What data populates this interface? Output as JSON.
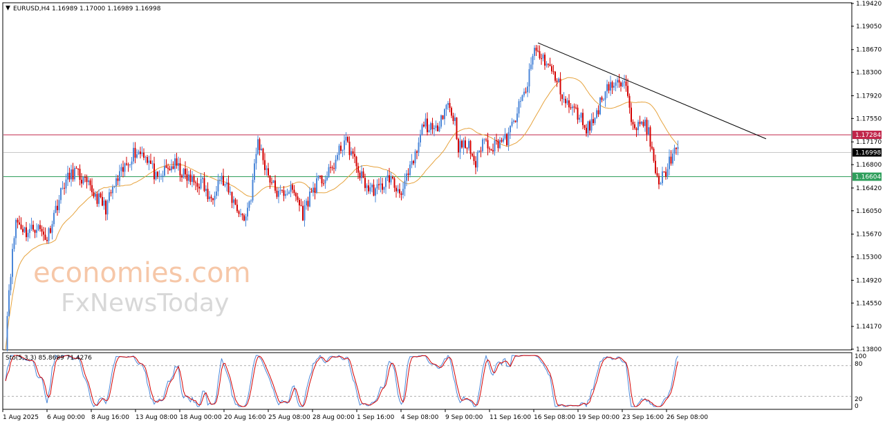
{
  "header": {
    "symbol_line": "EURUSD,H4  1.16989 1.17000 1.16989 1.16998"
  },
  "indicator": {
    "label": "Sto(5,3,3) 85.8689 71.4276",
    "levels": [
      "100",
      "80",
      "20",
      "0"
    ],
    "main_color": "#4a86d8",
    "signal_color": "#d40000"
  },
  "watermark": {
    "line1": "economies.com",
    "line2": "FxNewsToday"
  },
  "colors": {
    "bull": "#4a86d8",
    "bear": "#d40000",
    "ma": "#e6a23c",
    "trendline": "#000000",
    "resistance": "#c0264a",
    "support": "#2e9e5b"
  },
  "chart_data": {
    "type": "candlestick",
    "symbol": "EURUSD",
    "timeframe": "H4",
    "ylim": [
      1.138,
      1.1942
    ],
    "y_ticks": [
      "1.19420",
      "1.19050",
      "1.18670",
      "1.18300",
      "1.17920",
      "1.17550",
      "1.17170",
      "1.16800",
      "1.16420",
      "1.16050",
      "1.15670",
      "1.15300",
      "1.14920",
      "1.14550",
      "1.14170",
      "1.13800"
    ],
    "x_ticks": [
      "1 Aug 2025",
      "6 Aug 00:00",
      "8 Aug 16:00",
      "13 Aug 08:00",
      "18 Aug 00:00",
      "20 Aug 16:00",
      "25 Aug 08:00",
      "28 Aug 00:00",
      "1 Sep 16:00",
      "4 Sep 08:00",
      "9 Sep 00:00",
      "11 Sep 16:00",
      "16 Sep 08:00",
      "19 Sep 00:00",
      "23 Sep 16:00",
      "26 Sep 08:00"
    ],
    "price_path": [
      [
        0,
        1.139
      ],
      [
        2,
        1.148
      ],
      [
        6,
        1.159
      ],
      [
        12,
        1.157
      ],
      [
        18,
        1.158
      ],
      [
        24,
        1.156
      ],
      [
        28,
        1.16
      ],
      [
        34,
        1.165
      ],
      [
        40,
        1.167
      ],
      [
        46,
        1.165
      ],
      [
        52,
        1.163
      ],
      [
        58,
        1.161
      ],
      [
        62,
        1.164
      ],
      [
        68,
        1.167
      ],
      [
        74,
        1.17
      ],
      [
        80,
        1.17
      ],
      [
        84,
        1.168
      ],
      [
        88,
        1.165
      ],
      [
        92,
        1.167
      ],
      [
        98,
        1.168
      ],
      [
        104,
        1.166
      ],
      [
        110,
        1.165
      ],
      [
        114,
        1.165
      ],
      [
        118,
        1.162
      ],
      [
        124,
        1.166
      ],
      [
        128,
        1.164
      ],
      [
        134,
        1.161
      ],
      [
        138,
        1.159
      ],
      [
        142,
        1.163
      ],
      [
        146,
        1.172
      ],
      [
        150,
        1.168
      ],
      [
        154,
        1.165
      ],
      [
        158,
        1.163
      ],
      [
        164,
        1.164
      ],
      [
        168,
        1.163
      ],
      [
        172,
        1.16
      ],
      [
        176,
        1.163
      ],
      [
        180,
        1.165
      ],
      [
        186,
        1.166
      ],
      [
        190,
        1.168
      ],
      [
        196,
        1.172
      ],
      [
        200,
        1.17
      ],
      [
        204,
        1.167
      ],
      [
        210,
        1.164
      ],
      [
        216,
        1.164
      ],
      [
        222,
        1.166
      ],
      [
        226,
        1.164
      ],
      [
        230,
        1.164
      ],
      [
        234,
        1.167
      ],
      [
        238,
        1.17
      ],
      [
        242,
        1.175
      ],
      [
        248,
        1.173
      ],
      [
        252,
        1.176
      ],
      [
        256,
        1.178
      ],
      [
        260,
        1.175
      ],
      [
        262,
        1.171
      ],
      [
        268,
        1.171
      ],
      [
        272,
        1.168
      ],
      [
        276,
        1.172
      ],
      [
        282,
        1.171
      ],
      [
        286,
        1.172
      ],
      [
        290,
        1.172
      ],
      [
        294,
        1.175
      ],
      [
        298,
        1.178
      ],
      [
        302,
        1.181
      ],
      [
        306,
        1.187
      ],
      [
        308,
        1.186
      ],
      [
        312,
        1.185
      ],
      [
        316,
        1.183
      ],
      [
        320,
        1.181
      ],
      [
        324,
        1.178
      ],
      [
        328,
        1.177
      ],
      [
        332,
        1.176
      ],
      [
        336,
        1.174
      ],
      [
        340,
        1.175
      ],
      [
        344,
        1.178
      ],
      [
        348,
        1.181
      ],
      [
        352,
        1.181
      ],
      [
        356,
        1.181
      ],
      [
        360,
        1.18
      ],
      [
        362,
        1.176
      ],
      [
        366,
        1.174
      ],
      [
        370,
        1.175
      ],
      [
        372,
        1.173
      ],
      [
        374,
        1.17
      ],
      [
        376,
        1.166
      ],
      [
        378,
        1.165
      ],
      [
        382,
        1.167
      ],
      [
        386,
        1.1699
      ]
    ],
    "trendline": {
      "start": [
        308,
        1.1878
      ],
      "end": [
        440,
        1.1722
      ]
    },
    "horizontal_levels": [
      {
        "label": "1.17284",
        "value": 1.17284
      },
      {
        "label": "1.16604",
        "value": 1.16604
      }
    ],
    "last_price": {
      "label": "1.16998",
      "value": 1.16998
    },
    "moving_average": "orange line",
    "stochastic": {
      "ylim": [
        0,
        100
      ],
      "levels": [
        80,
        20
      ]
    }
  }
}
